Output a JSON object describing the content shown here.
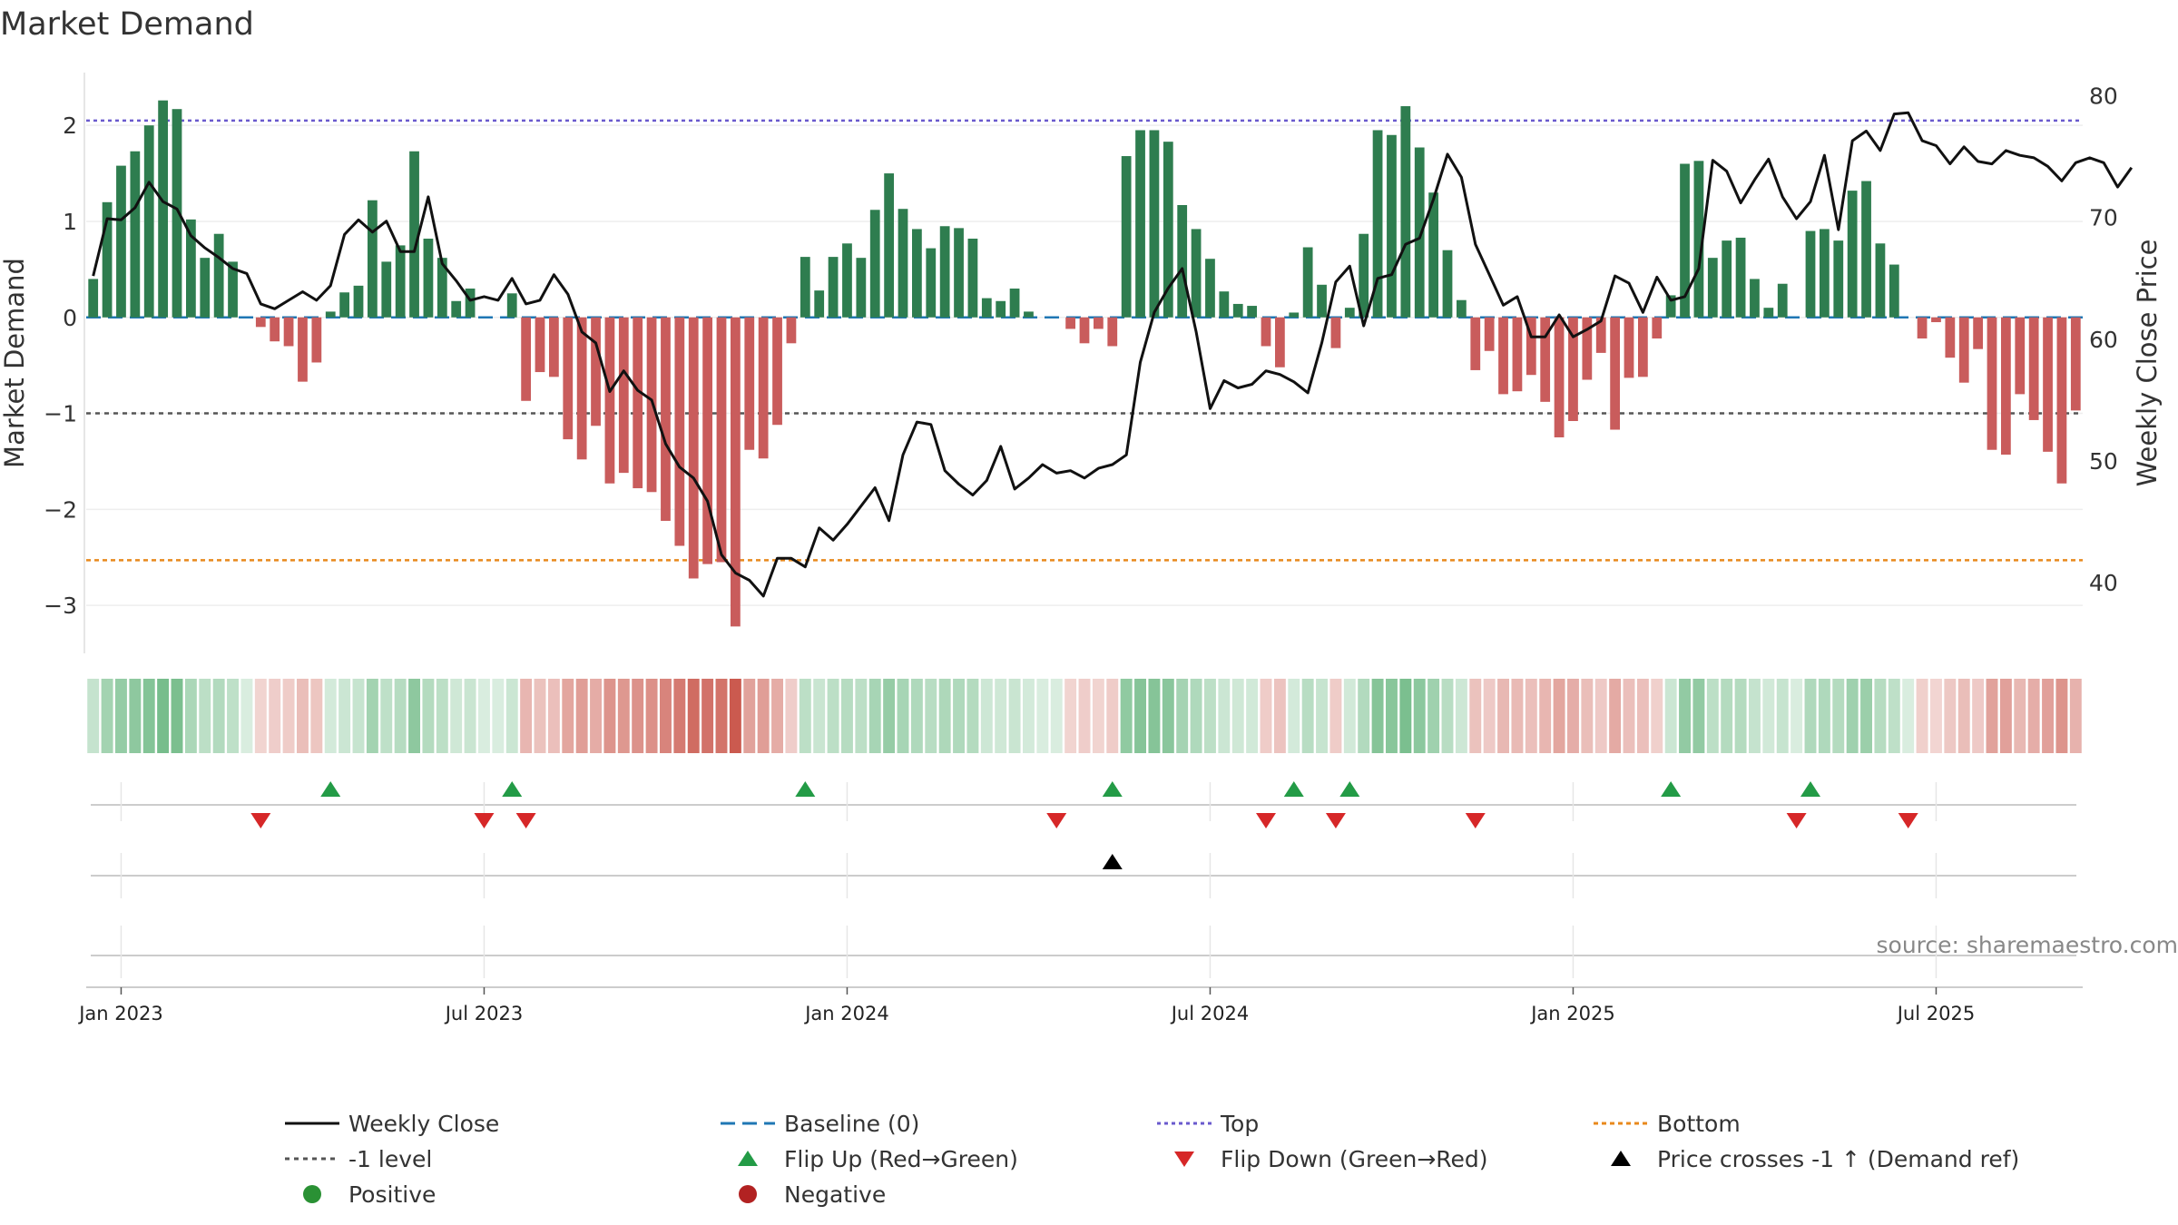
{
  "chart_data": {
    "type": "bar",
    "title": "Market Demand",
    "source": "source: sharemaestro.com",
    "ylabel_left": "Market Demand",
    "ylabel_right": "Weekly Close Price",
    "ylim_left": [
      -3.5,
      2.55
    ],
    "ylim_right": [
      34.2,
      81.9
    ],
    "yticks_left": [
      2,
      1,
      0,
      -1,
      -2,
      -3
    ],
    "yticks_left_labels": [
      "2",
      "1",
      "0",
      "−1",
      "−2",
      "−3"
    ],
    "yticks_right": [
      80,
      70,
      60,
      50,
      40
    ],
    "yticks_right_labels": [
      "80",
      "70",
      "60",
      "50",
      "40"
    ],
    "x_ticks": [
      {
        "label": "Jan 2023",
        "week": 2
      },
      {
        "label": "Jul 2023",
        "week": 28
      },
      {
        "label": "Jan 2024",
        "week": 54
      },
      {
        "label": "Jul 2024",
        "week": 80
      },
      {
        "label": "Jan 2025",
        "week": 106
      },
      {
        "label": "Jul 2025",
        "week": 132
      }
    ],
    "reference_lines": {
      "top": 2.05,
      "bottom": -2.53,
      "minus_one": -1,
      "baseline": 0
    },
    "demand": [
      0.4,
      1.2,
      1.58,
      1.73,
      2.0,
      2.26,
      2.17,
      1.02,
      0.62,
      0.87,
      0.58,
      0,
      -0.1,
      -0.25,
      -0.3,
      -0.67,
      -0.47,
      0.06,
      0.26,
      0.33,
      1.22,
      0.58,
      0.75,
      1.73,
      0.82,
      0.62,
      0.17,
      0.3,
      0,
      0,
      0.25,
      -0.87,
      -0.57,
      -0.62,
      -1.27,
      -1.48,
      -1.13,
      -1.73,
      -1.62,
      -1.78,
      -1.82,
      -2.12,
      -2.38,
      -2.72,
      -2.57,
      -2.55,
      -3.22,
      -1.38,
      -1.47,
      -1.12,
      -0.27,
      0.63,
      0.28,
      0.63,
      0.77,
      0.62,
      1.12,
      1.5,
      1.13,
      0.92,
      0.72,
      0.95,
      0.93,
      0.82,
      0.2,
      0.17,
      0.3,
      0.06,
      0,
      0,
      -0.12,
      -0.27,
      -0.12,
      -0.3,
      1.68,
      1.95,
      1.95,
      1.83,
      1.17,
      0.92,
      0.61,
      0.27,
      0.14,
      0.12,
      -0.3,
      -0.52,
      0.05,
      0.73,
      0.34,
      -0.32,
      0.1,
      0.87,
      1.95,
      1.9,
      2.2,
      1.77,
      1.3,
      0.7,
      0.18,
      -0.55,
      -0.35,
      -0.8,
      -0.77,
      -0.6,
      -0.88,
      -1.25,
      -1.08,
      -0.65,
      -0.37,
      -1.17,
      -0.63,
      -0.62,
      -0.22,
      0.23,
      1.6,
      1.63,
      0.62,
      0.8,
      0.83,
      0.4,
      0.1,
      0.35,
      0,
      0.9,
      0.92,
      0.8,
      1.32,
      1.42,
      0.77,
      0.55,
      0,
      -0.22,
      -0.05,
      -0.42,
      -0.68,
      -0.33,
      -1.38,
      -1.43,
      -0.8,
      -1.07,
      -1.4,
      -1.73,
      -0.97
    ],
    "weekly_close": [
      65.2,
      69.9,
      69.8,
      70.8,
      72.9,
      71.3,
      70.7,
      68.5,
      67.5,
      66.7,
      65.8,
      65.4,
      62.9,
      62.5,
      63.2,
      63.9,
      63.2,
      64.4,
      68.6,
      69.8,
      68.8,
      69.7,
      67.2,
      67.2,
      71.7,
      66.2,
      64.8,
      63.2,
      63.5,
      63.2,
      65.0,
      62.9,
      63.2,
      65.3,
      63.7,
      60.6,
      59.7,
      55.7,
      57.4,
      55.8,
      55.0,
      51.4,
      49.5,
      48.6,
      46.7,
      42.3,
      40.8,
      40.2,
      38.9,
      42.0,
      42.0,
      41.3,
      44.5,
      43.5,
      44.8,
      46.3,
      47.8,
      45.1,
      50.5,
      53.2,
      53.0,
      49.2,
      48.1,
      47.2,
      48.4,
      51.2,
      47.7,
      48.6,
      49.7,
      49.0,
      49.2,
      48.6,
      49.4,
      49.7,
      50.5,
      58.1,
      62.2,
      64.2,
      65.8,
      60.6,
      54.3,
      56.6,
      56.0,
      56.3,
      57.4,
      57.1,
      56.5,
      55.6,
      59.7,
      64.7,
      66.0,
      61.1,
      65.0,
      65.3,
      67.8,
      68.3,
      71.5,
      75.2,
      73.3,
      67.8,
      65.3,
      62.8,
      63.5,
      60.2,
      60.2,
      62.0,
      60.2,
      60.8,
      61.5,
      65.2,
      64.6,
      62.2,
      65.1,
      63.2,
      63.5,
      65.8,
      74.7,
      73.8,
      71.2,
      73.1,
      74.8,
      71.7,
      69.9,
      71.3,
      75.1,
      69.0,
      76.3,
      77.1,
      75.5,
      78.5,
      78.6,
      76.3,
      75.9,
      74.4,
      75.8,
      74.6,
      74.4,
      75.5,
      75.1,
      74.9,
      74.2,
      73.0,
      74.5,
      74.9,
      74.5,
      72.5,
      74.1
    ],
    "flip_up_weeks": [
      17,
      30,
      51,
      73,
      86,
      90,
      113,
      123
    ],
    "flip_down_weeks": [
      12,
      28,
      31,
      69,
      84,
      89,
      99,
      122,
      130
    ],
    "price_cross_weeks": [
      73
    ],
    "legend": [
      {
        "key": "weekly_close",
        "label": "Weekly Close"
      },
      {
        "key": "baseline",
        "label": "Baseline (0)"
      },
      {
        "key": "top",
        "label": "Top"
      },
      {
        "key": "bottom",
        "label": "Bottom"
      },
      {
        "key": "minus_one",
        "label": "-1 level"
      },
      {
        "key": "flip_up",
        "label": "Flip Up (Red→Green)"
      },
      {
        "key": "flip_down",
        "label": "Flip Down (Green→Red)"
      },
      {
        "key": "price_cross",
        "label": "Price crosses -1 ↑ (Demand ref)"
      },
      {
        "key": "positive",
        "label": "Positive"
      },
      {
        "key": "negative",
        "label": "Negative"
      }
    ],
    "colors": {
      "positive_bar": "#2e7d4f",
      "negative_bar": "#c95c5c",
      "close_line": "#111111",
      "baseline": "#1f77b4",
      "top": "#6a5acd",
      "bottom": "#e8891c",
      "minus_one": "#555555",
      "flip_up": "#239b46",
      "flip_down": "#d62728",
      "price_cross": "#000000",
      "positive_dot": "#2a9134",
      "negative_dot": "#b22222",
      "heat_pos": "#2e9a4e",
      "heat_neg": "#c0392b"
    }
  }
}
